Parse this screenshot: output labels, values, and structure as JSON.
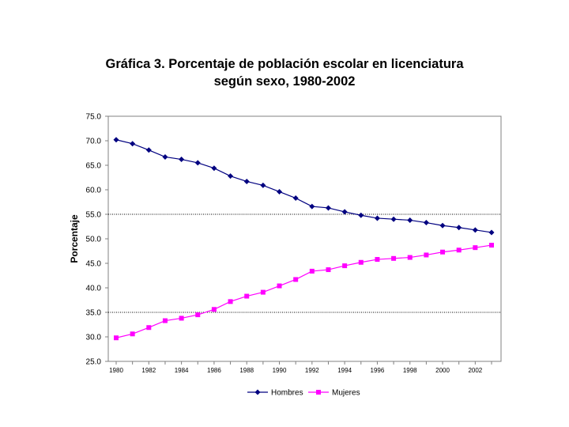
{
  "chart_data": {
    "type": "line",
    "title_line1": "Gráfica 3. Porcentaje de población escolar en licenciatura",
    "title_line2": "según sexo, 1980-2002",
    "xlabel": "",
    "ylabel": "Porcentaje",
    "ylim": [
      25.0,
      75.0
    ],
    "yticks": [
      "75.0",
      "70.0",
      "65.0",
      "60.0",
      "55.0",
      "50.0",
      "45.0",
      "40.0",
      "35.0",
      "30.0",
      "25.0"
    ],
    "ytick_values": [
      75,
      70,
      65,
      60,
      55,
      50,
      45,
      40,
      35,
      30,
      25
    ],
    "gridlines_at": [
      55,
      35
    ],
    "x": [
      1980,
      1981,
      1982,
      1983,
      1984,
      1985,
      1986,
      1987,
      1988,
      1989,
      1990,
      1991,
      1992,
      1993,
      1994,
      1995,
      1996,
      1997,
      1998,
      1999,
      2000,
      2001,
      2002,
      2003
    ],
    "xtick_labels": [
      "1980",
      "1982",
      "1984",
      "1986",
      "1988",
      "1990",
      "1992",
      "1994",
      "1996",
      "1998",
      "2000",
      "2002"
    ],
    "xtick_values": [
      1980,
      1982,
      1984,
      1986,
      1988,
      1990,
      1992,
      1994,
      1996,
      1998,
      2000,
      2002
    ],
    "series": [
      {
        "name": "Hombres",
        "color": "#000080",
        "marker": "diamond",
        "values": [
          70.2,
          69.4,
          68.1,
          66.7,
          66.2,
          65.5,
          64.4,
          62.8,
          61.7,
          60.9,
          59.6,
          58.3,
          56.6,
          56.3,
          55.5,
          54.8,
          54.2,
          54.0,
          53.8,
          53.3,
          52.7,
          52.3,
          51.8,
          51.3
        ]
      },
      {
        "name": "Mujeres",
        "color": "#FF00FF",
        "marker": "square",
        "values": [
          29.8,
          30.6,
          31.9,
          33.3,
          33.8,
          34.5,
          35.6,
          37.2,
          38.3,
          39.1,
          40.4,
          41.7,
          43.4,
          43.7,
          44.5,
          45.2,
          45.8,
          46.0,
          46.2,
          46.7,
          47.3,
          47.7,
          48.2,
          48.7
        ]
      }
    ],
    "legend_position": "bottom"
  }
}
